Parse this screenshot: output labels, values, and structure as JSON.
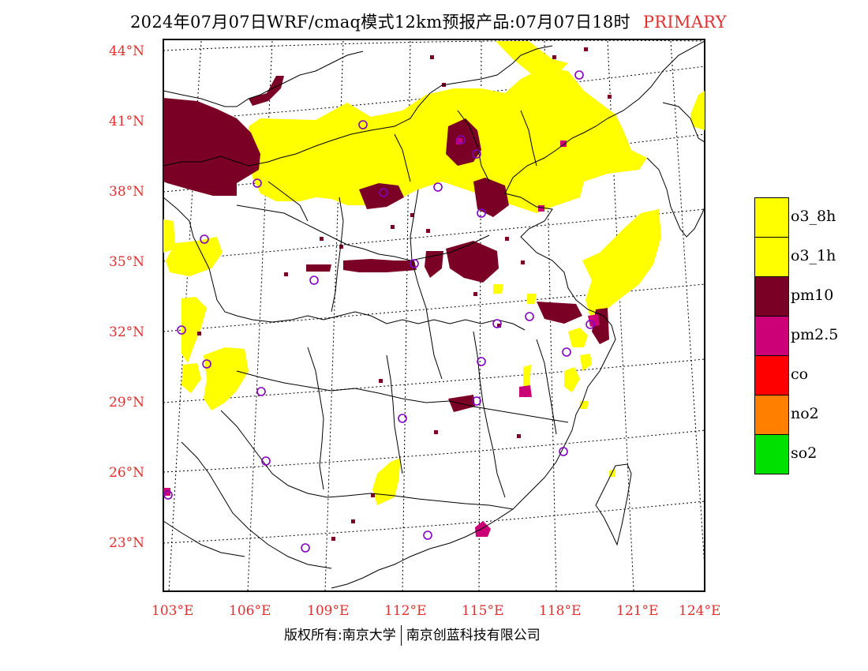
{
  "header": {
    "title": "2024年07月07日WRF/cmaq模式12km预报产品:07月07日18时",
    "tag": "PRIMARY"
  },
  "lat_labels": [
    "44°N",
    "41°N",
    "38°N",
    "35°N",
    "32°N",
    "29°N",
    "26°N",
    "23°N"
  ],
  "lon_labels": [
    "103°E",
    "106°E",
    "109°E",
    "112°E",
    "115°E",
    "118°E",
    "121°E",
    "124°E"
  ],
  "legend": [
    {
      "label": "o3_8h",
      "color": "#ffff00"
    },
    {
      "label": "o3_1h",
      "color": "#ffff00"
    },
    {
      "label": "pm10",
      "color": "#7a0025"
    },
    {
      "label": "pm2.5",
      "color": "#cc0077"
    },
    {
      "label": "co",
      "color": "#ff0000"
    },
    {
      "label": "no2",
      "color": "#ff7f00"
    },
    {
      "label": "so2",
      "color": "#00e000"
    }
  ],
  "footer": {
    "left": "版权所有:南京大学",
    "right": "南京创蓝科技有限公司"
  }
}
